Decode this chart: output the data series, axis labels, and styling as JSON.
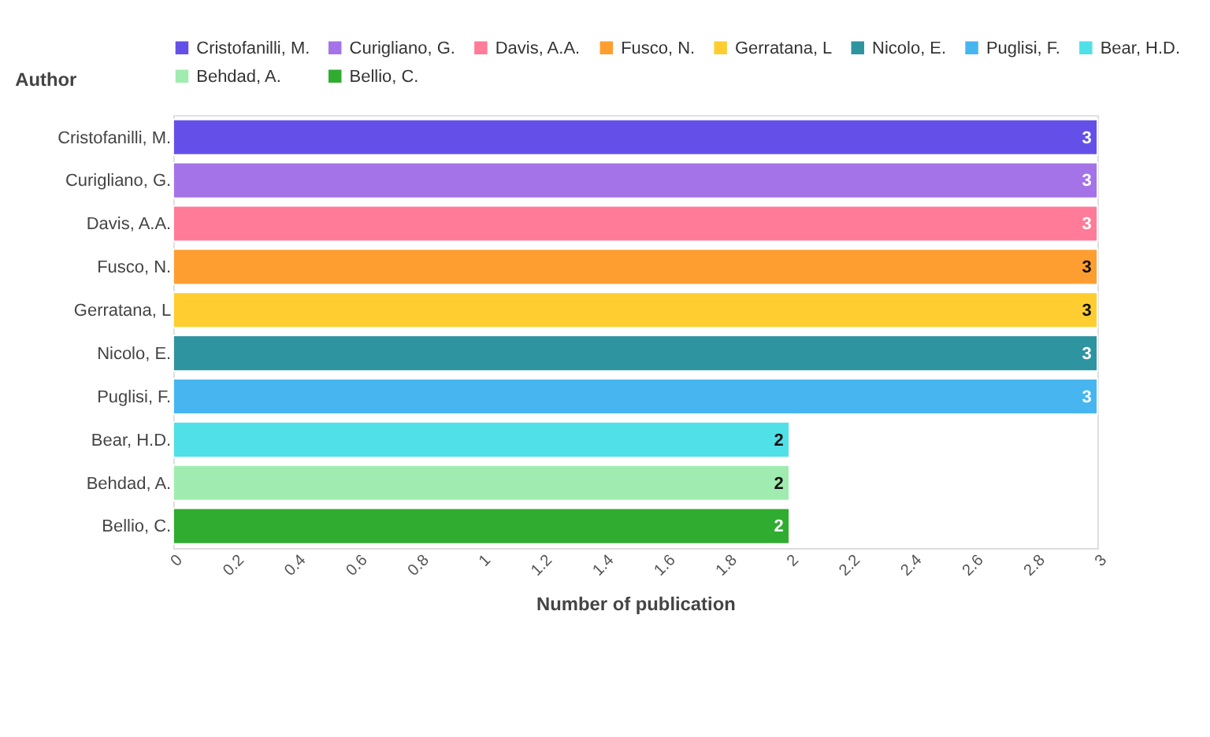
{
  "chart_data": {
    "type": "bar",
    "orientation": "horizontal",
    "xlabel": "Number of publication",
    "ylabel": "Author",
    "categories": [
      "Cristofanilli, M.",
      "Curigliano, G.",
      "Davis, A.A.",
      "Fusco, N.",
      "Gerratana, L",
      "Nicolo, E.",
      "Puglisi, F.",
      "Bear, H.D.",
      "Behdad, A.",
      "Bellio, C."
    ],
    "series": [
      {
        "name": "Cristofanilli, M.",
        "color": "#6450e8",
        "values": [
          3,
          null,
          null,
          null,
          null,
          null,
          null,
          null,
          null,
          null
        ]
      },
      {
        "name": "Curigliano, G.",
        "color": "#a473e8",
        "values": [
          null,
          3,
          null,
          null,
          null,
          null,
          null,
          null,
          null,
          null
        ]
      },
      {
        "name": "Davis, A.A.",
        "color": "#ff7b98",
        "values": [
          null,
          null,
          3,
          null,
          null,
          null,
          null,
          null,
          null,
          null
        ]
      },
      {
        "name": "Fusco, N.",
        "color": "#ff9e30",
        "values": [
          null,
          null,
          null,
          3,
          null,
          null,
          null,
          null,
          null,
          null
        ]
      },
      {
        "name": "Gerratana, L",
        "color": "#ffcd30",
        "values": [
          null,
          null,
          null,
          null,
          3,
          null,
          null,
          null,
          null,
          null
        ]
      },
      {
        "name": "Nicolo, E.",
        "color": "#2e94a0",
        "values": [
          null,
          null,
          null,
          null,
          null,
          3,
          null,
          null,
          null,
          null
        ]
      },
      {
        "name": "Puglisi, F.",
        "color": "#47b6f0",
        "values": [
          null,
          null,
          null,
          null,
          null,
          null,
          3,
          null,
          null,
          null
        ]
      },
      {
        "name": "Bear, H.D.",
        "color": "#50e0e8",
        "values": [
          null,
          null,
          null,
          null,
          null,
          null,
          null,
          2,
          null,
          null
        ]
      },
      {
        "name": "Behdad, A.",
        "color": "#a0ecb0",
        "values": [
          null,
          null,
          null,
          null,
          null,
          null,
          null,
          null,
          2,
          null
        ]
      },
      {
        "name": "Bellio, C.",
        "color": "#30ac30",
        "values": [
          null,
          null,
          null,
          null,
          null,
          null,
          null,
          null,
          null,
          2
        ]
      }
    ],
    "xlim": [
      0,
      3
    ],
    "xticks": [
      0,
      0.2,
      0.4,
      0.6,
      0.8,
      1,
      1.2,
      1.4,
      1.6,
      1.8,
      2,
      2.2,
      2.4,
      2.6,
      2.8,
      3
    ],
    "data_labels": true,
    "legend": "top",
    "grid": false
  }
}
